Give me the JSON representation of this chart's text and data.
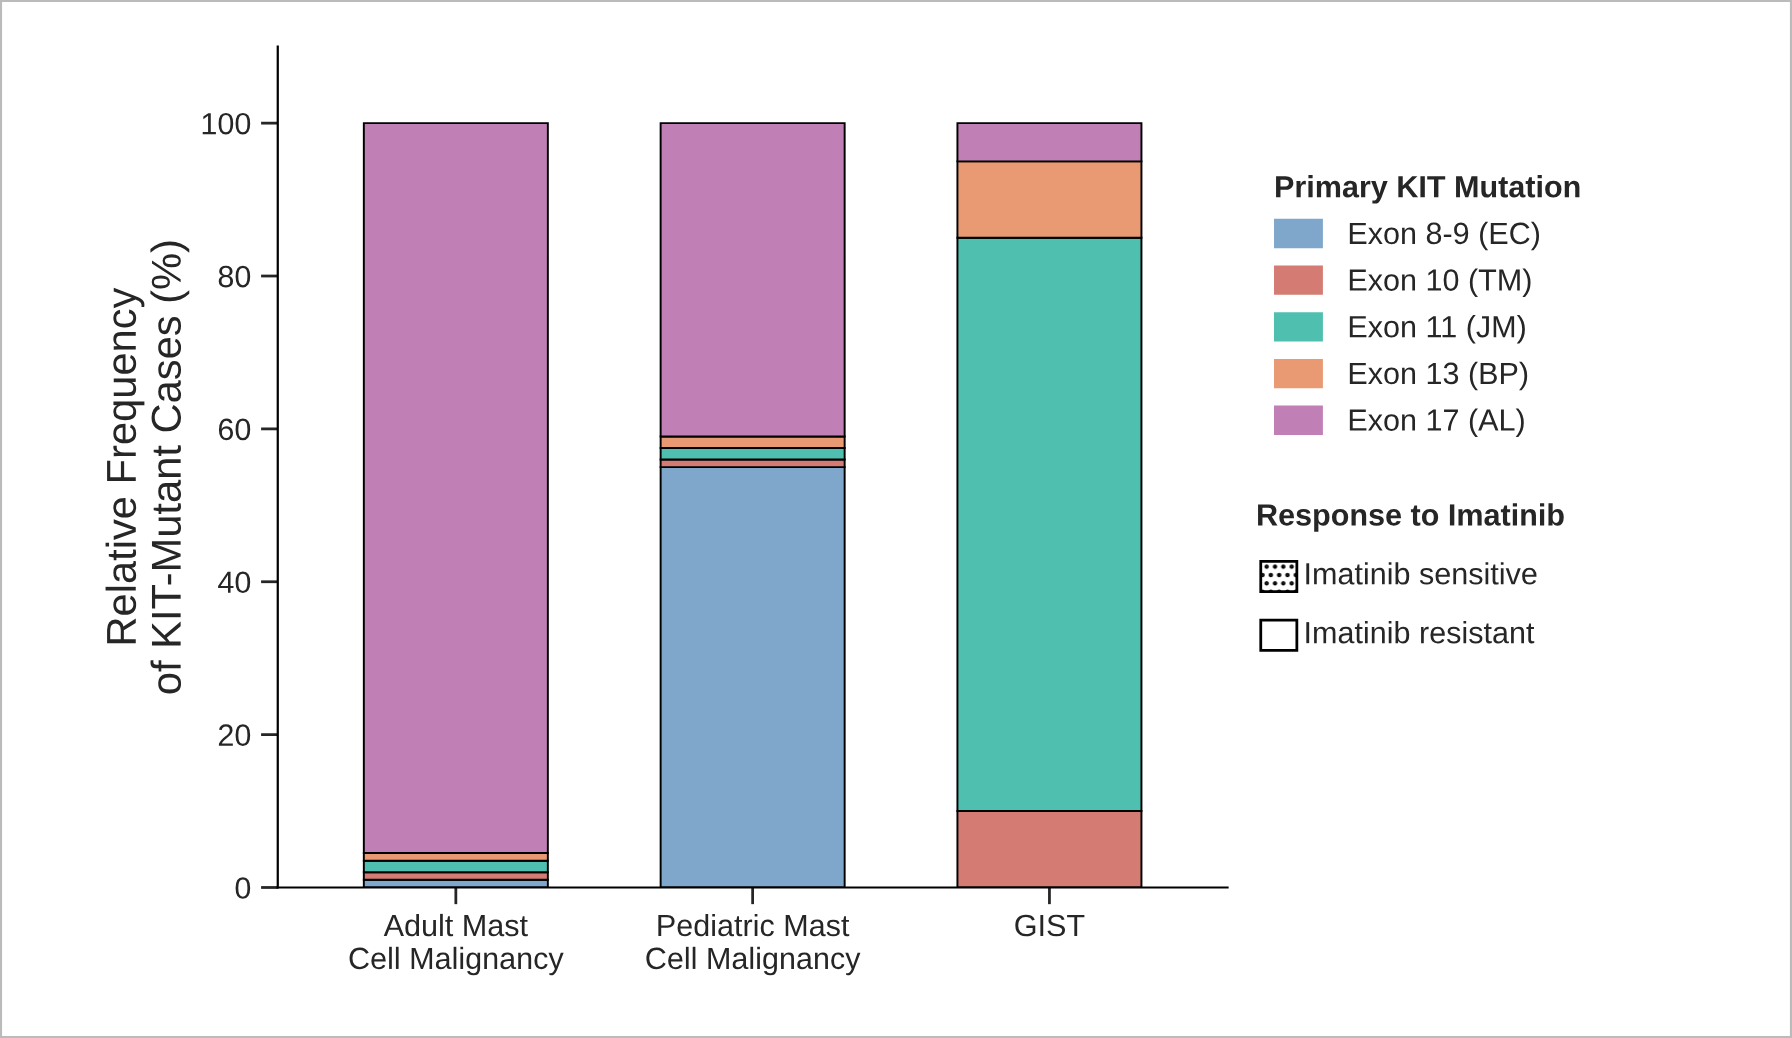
{
  "chart_data": {
    "type": "bar",
    "stacked": true,
    "ylabel": "Relative Frequency\nof KIT-Mutant Cases (%)",
    "categories": [
      "Adult Mast\nCell Malignancy",
      "Pediatric Mast\nCell Malignancy",
      "GIST"
    ],
    "series": [
      {
        "name": "Exon 8-9 (EC)",
        "color": "#7fa7cc",
        "values": [
          1,
          55,
          0
        ]
      },
      {
        "name": "Exon 10 (TM)",
        "color": "#d47b74",
        "values": [
          1,
          1,
          10
        ]
      },
      {
        "name": "Exon 11 (JM)",
        "color": "#4fbfb0",
        "values": [
          1.5,
          1.5,
          75
        ]
      },
      {
        "name": "Exon 13 (BP)",
        "color": "#e99a72",
        "values": [
          1,
          1.5,
          10
        ]
      },
      {
        "name": "Exon 17 (AL)",
        "color": "#c07fb5",
        "values": [
          95.5,
          41,
          5
        ]
      }
    ],
    "ylim": [
      0,
      110
    ],
    "yticks": [
      0,
      20,
      40,
      60,
      80,
      100
    ],
    "legend": "right",
    "legend_title": "Primary KIT Mutation",
    "annotations": [
      "Response to Imatinib",
      "Imatinib sensitive",
      "Imatinib resistant"
    ]
  }
}
